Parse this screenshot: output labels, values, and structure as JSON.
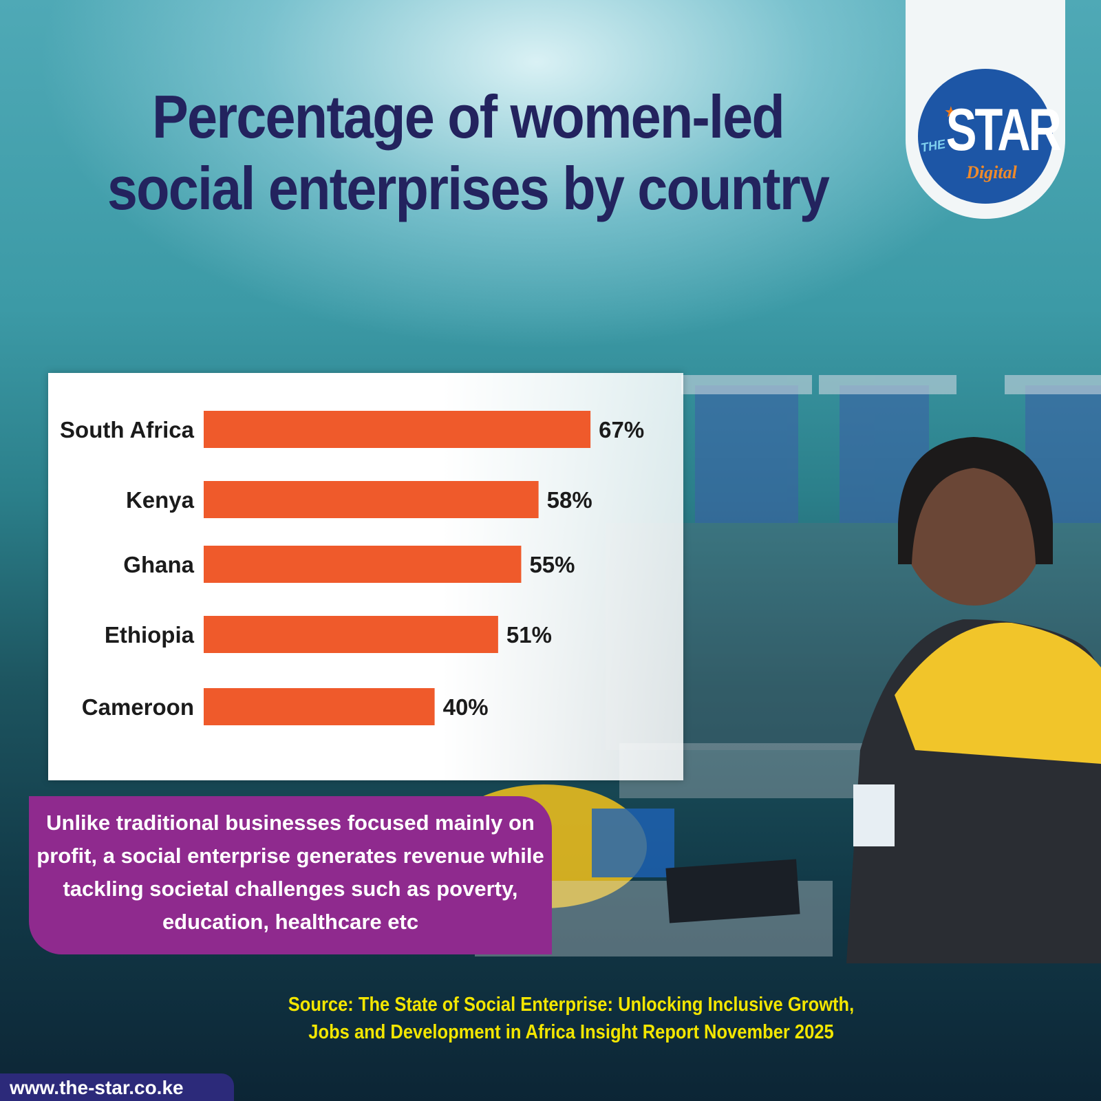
{
  "title": "Percentage of women-led social enterprises by country",
  "logo": {
    "the": "THE",
    "star": "STAR",
    "digital": "Digital"
  },
  "chart_data": {
    "type": "bar",
    "orientation": "horizontal",
    "categories": [
      "South Africa",
      "Kenya",
      "Ghana",
      "Ethiopia",
      "Cameroon"
    ],
    "values": [
      67,
      58,
      55,
      51,
      40
    ],
    "value_labels": [
      "67%",
      "58%",
      "55%",
      "51%",
      "40%"
    ],
    "unit": "%",
    "xlim": [
      0,
      100
    ],
    "bar_color": "#ef5a2b",
    "grid": false
  },
  "note": "Unlike traditional businesses focused mainly on profit, a social enterprise generates revenue while tackling societal challenges such as poverty, education, healthcare etc",
  "source": "Source: The State of Social Enterprise: Unlocking Inclusive Growth, Jobs and Development in Africa Insight Report November 2025",
  "url": "www.the-star.co.ke",
  "colors": {
    "title": "#23235e",
    "note_bg": "#8f2a8e",
    "source_text": "#f3e600",
    "logo_bg": "#1d56a6",
    "url_bg": "#2c2a7a"
  }
}
